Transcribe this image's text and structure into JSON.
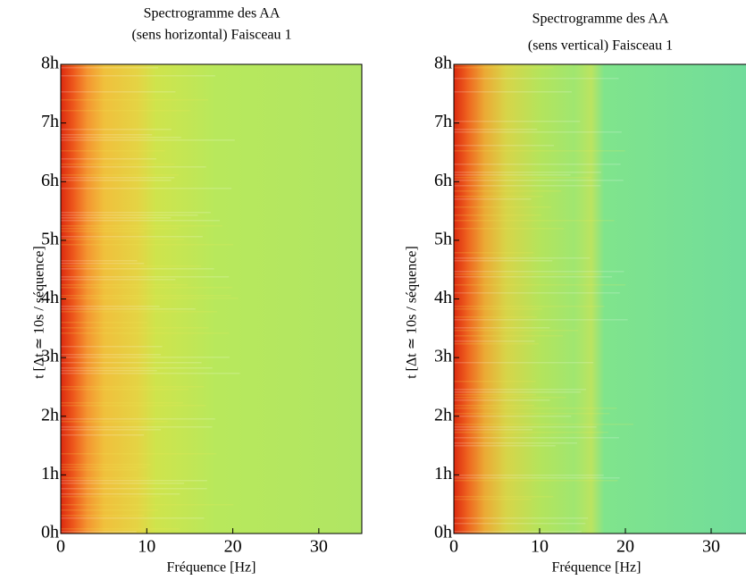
{
  "chart_data": [
    {
      "type": "spectrogram",
      "title": [
        "Spectrogramme des AA",
        "(sens horizontal) Faisceau 1"
      ],
      "xlabel": "Fréquence [Hz]",
      "ylabel": "t [Δt ≃ 10s / séquence]",
      "xlim": [
        0,
        35
      ],
      "xticks": [
        0,
        10,
        20,
        30
      ],
      "ylim": [
        0,
        8
      ],
      "yticks": [
        {
          "value": 0,
          "label": "0h"
        },
        {
          "value": 1,
          "label": "1h"
        },
        {
          "value": 2,
          "label": "2h"
        },
        {
          "value": 3,
          "label": "3h"
        },
        {
          "value": 4,
          "label": "4h"
        },
        {
          "value": 5,
          "label": "5h"
        },
        {
          "value": 6,
          "label": "6h"
        },
        {
          "value": 7,
          "label": "7h"
        },
        {
          "value": 8,
          "label": "8h"
        }
      ],
      "color_stops": [
        {
          "x": 0,
          "color": "#dc2a10"
        },
        {
          "x": 1.5,
          "color": "#ee5a1c"
        },
        {
          "x": 3,
          "color": "#f49430"
        },
        {
          "x": 5,
          "color": "#f0c03c"
        },
        {
          "x": 9,
          "color": "#e4d444"
        },
        {
          "x": 11,
          "color": "#cfe44c"
        },
        {
          "x": 18,
          "color": "#b8e85c"
        },
        {
          "x": 35,
          "color": "#b0e664"
        }
      ]
    },
    {
      "type": "spectrogram",
      "title": [
        "Spectrogramme des AA",
        "(sens vertical) Faisceau 1"
      ],
      "xlabel": "Fréquence [Hz]",
      "ylabel": "t [Δt ≃ 10s / séquence]",
      "xlim": [
        0,
        35
      ],
      "xticks": [
        0,
        10,
        20,
        30
      ],
      "ylim": [
        0,
        8
      ],
      "yticks": [
        {
          "value": 0,
          "label": "0h"
        },
        {
          "value": 1,
          "label": "1h"
        },
        {
          "value": 2,
          "label": "2h"
        },
        {
          "value": 3,
          "label": "3h"
        },
        {
          "value": 4,
          "label": "4h"
        },
        {
          "value": 5,
          "label": "5h"
        },
        {
          "value": 6,
          "label": "6h"
        },
        {
          "value": 7,
          "label": "7h"
        },
        {
          "value": 8,
          "label": "8h"
        }
      ],
      "color_stops": [
        {
          "x": 0,
          "color": "#dc2a10"
        },
        {
          "x": 1.5,
          "color": "#ee601e"
        },
        {
          "x": 3.5,
          "color": "#eca834"
        },
        {
          "x": 6,
          "color": "#d8d448"
        },
        {
          "x": 10,
          "color": "#b4e45c"
        },
        {
          "x": 14,
          "color": "#a0e670"
        },
        {
          "x": 16,
          "color": "#bce460"
        },
        {
          "x": 17.5,
          "color": "#80e48c"
        },
        {
          "x": 35,
          "color": "#70dc9c"
        }
      ]
    }
  ]
}
